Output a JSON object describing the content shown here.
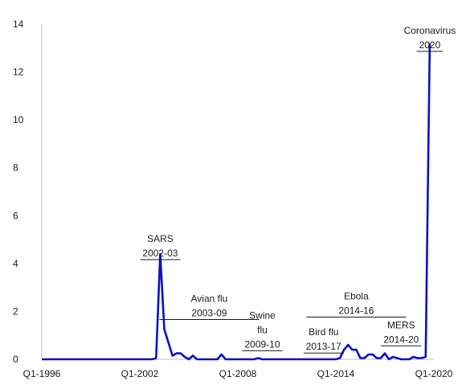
{
  "chart_data": {
    "type": "line",
    "title": "",
    "xlabel": "",
    "ylabel": "",
    "ylim": [
      0,
      14
    ],
    "y_ticks": [
      0,
      2,
      4,
      6,
      8,
      10,
      12,
      14
    ],
    "x_tick_labels": [
      "Q1-1996",
      "Q1-2002",
      "Q1-2008",
      "Q1-2014",
      "Q1-2020"
    ],
    "x_range": [
      "Q1-1996",
      "Q1-2020"
    ],
    "series": [
      {
        "color": "#0a10c8",
        "points": [
          [
            "Q1-1996",
            0
          ],
          [
            "Q1-1997",
            0
          ],
          [
            "Q1-1998",
            0
          ],
          [
            "Q1-1999",
            0
          ],
          [
            "Q1-2000",
            0
          ],
          [
            "Q1-2001",
            0
          ],
          [
            "Q1-2002",
            0
          ],
          [
            "Q2-2002",
            0
          ],
          [
            "Q3-2002",
            0
          ],
          [
            "Q4-2002",
            0
          ],
          [
            "Q1-2003",
            0.05
          ],
          [
            "Q2-2003",
            4.4
          ],
          [
            "Q3-2003",
            1.25
          ],
          [
            "Q4-2003",
            0.7
          ],
          [
            "Q1-2004",
            0.15
          ],
          [
            "Q2-2004",
            0.25
          ],
          [
            "Q3-2004",
            0.25
          ],
          [
            "Q4-2004",
            0.1
          ],
          [
            "Q1-2005",
            0.0
          ],
          [
            "Q2-2005",
            0.15
          ],
          [
            "Q3-2005",
            0.0
          ],
          [
            "Q4-2005",
            0
          ],
          [
            "Q1-2006",
            0
          ],
          [
            "Q2-2006",
            0
          ],
          [
            "Q3-2006",
            0
          ],
          [
            "Q4-2006",
            0
          ],
          [
            "Q1-2007",
            0.2
          ],
          [
            "Q2-2007",
            0
          ],
          [
            "Q1-2008",
            0
          ],
          [
            "Q1-2009",
            0
          ],
          [
            "Q2-2009",
            0.05
          ],
          [
            "Q3-2009",
            0
          ],
          [
            "Q1-2010",
            0
          ],
          [
            "Q1-2011",
            0
          ],
          [
            "Q1-2012",
            0
          ],
          [
            "Q1-2013",
            0
          ],
          [
            "Q1-2014",
            0
          ],
          [
            "Q2-2014",
            0.05
          ],
          [
            "Q3-2014",
            0.4
          ],
          [
            "Q4-2014",
            0.6
          ],
          [
            "Q1-2015",
            0.4
          ],
          [
            "Q2-2015",
            0.4
          ],
          [
            "Q3-2015",
            0.05
          ],
          [
            "Q4-2015",
            0.05
          ],
          [
            "Q1-2016",
            0.2
          ],
          [
            "Q2-2016",
            0.2
          ],
          [
            "Q3-2016",
            0.05
          ],
          [
            "Q4-2016",
            0.05
          ],
          [
            "Q1-2017",
            0.25
          ],
          [
            "Q2-2017",
            0.0
          ],
          [
            "Q3-2017",
            0.1
          ],
          [
            "Q4-2017",
            0.05
          ],
          [
            "Q1-2018",
            0
          ],
          [
            "Q2-2018",
            0
          ],
          [
            "Q3-2018",
            0
          ],
          [
            "Q4-2018",
            0.1
          ],
          [
            "Q1-2019",
            0.05
          ],
          [
            "Q2-2019",
            0.05
          ],
          [
            "Q3-2019",
            0.1
          ],
          [
            "Q4-2019",
            13.2
          ]
        ]
      }
    ],
    "annotations": [
      {
        "line1": "SARS",
        "line2": "2002-03",
        "at": "Q2-2003",
        "y": 4.9,
        "underline": "short"
      },
      {
        "line1": "Avian flu",
        "line2": "2003-09",
        "at": "Q2-2006",
        "y": 2.4,
        "underline": "long"
      },
      {
        "line1": "Swine",
        "line2": "flu",
        "line3": "2009-10",
        "at": "Q3-2009",
        "y": 1.7,
        "underline": "short"
      },
      {
        "line1": "Bird flu",
        "line2": "2013-17",
        "at": "Q2-2013",
        "y": 1.0,
        "underline": "short"
      },
      {
        "line1": "Ebola",
        "line2": "2014-16",
        "at": "Q2-2015",
        "y": 2.5,
        "underline": "long"
      },
      {
        "line1": "MERS",
        "line2": "2014-20",
        "at": "Q1-2018",
        "y": 1.3,
        "underline": "short"
      },
      {
        "line1": "Coronavirus",
        "line2": "2020",
        "at": "Q4-2019",
        "y": 13.6,
        "underline": "short"
      }
    ],
    "grid": false,
    "legend": "none"
  }
}
